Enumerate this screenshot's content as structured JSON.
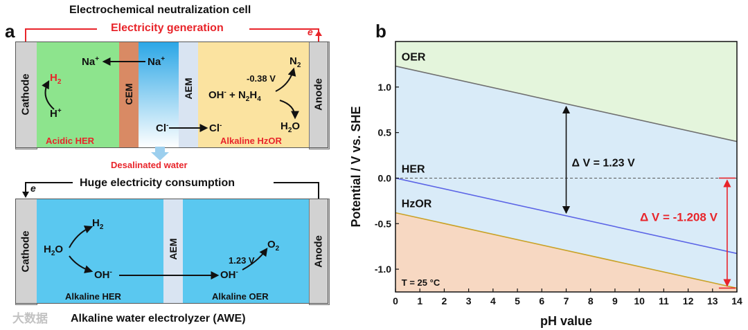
{
  "panel_a": {
    "label": "a",
    "top_cell": {
      "title": "Electrochemical neutralization cell",
      "circuit_label": "Electricity generation",
      "electron": "e",
      "cathode": "Cathode",
      "anode": "Anode",
      "cem": "CEM",
      "aem": "AEM",
      "h2": "H",
      "h2_sub": "2",
      "hplus": "H",
      "hplus_sup": "+",
      "na_left": "Na",
      "na_right": "Na",
      "na_sup": "+",
      "cl_left": "Cl",
      "cl_right": "Cl",
      "minus": "-",
      "oh_hydrazine": "OH",
      "hydrazine_plus": " + N",
      "hydrazine_sub1": "2",
      "hydrazine_h": "H",
      "hydrazine_sub2": "4",
      "voltage": "-0.38 V",
      "n2": "N",
      "n2_sub": "2",
      "h2o": "H",
      "h2o_sub": "2",
      "h2o_o": "O",
      "acidic_her": "Acidic HER",
      "alkaline_hzor": "Alkaline HzOR"
    },
    "desalinated": "Desalinated water",
    "bottom_cell": {
      "circuit_label": "Huge electricity consumption",
      "electron": "e",
      "cathode": "Cathode",
      "anode": "Anode",
      "aem": "AEM",
      "h2": "H",
      "h2_sub": "2",
      "h2o": "H",
      "h2o_sub": "2",
      "h2o_o": "O",
      "oh_left": "OH",
      "oh_right": "OH",
      "minus": "-",
      "voltage": "1.23 V",
      "o2": "O",
      "o2_sub": "2",
      "alkaline_her": "Alkaline HER",
      "alkaline_oer": "Alkaline OER",
      "caption": "Alkaline water electrolyzer (AWE)"
    }
  },
  "panel_b": {
    "label": "b",
    "chart_data": {
      "type": "line",
      "title": "",
      "xlabel": "pH value",
      "ylabel": "Potential / V vs. SHE",
      "xlim": [
        0,
        14
      ],
      "ylim": [
        -1.25,
        1.5
      ],
      "xticks": [
        0,
        1,
        2,
        3,
        4,
        5,
        6,
        7,
        8,
        9,
        10,
        11,
        12,
        13,
        14
      ],
      "yticks": [
        -1.0,
        -0.5,
        0.0,
        0.5,
        1.0
      ],
      "ytick_labels": [
        "-1.0",
        "-0.5",
        "0.0",
        "0.5",
        "1.0"
      ],
      "series": [
        {
          "name": "OER",
          "x": [
            0,
            14
          ],
          "y": [
            1.23,
            0.402
          ],
          "color": "#6f6f6f"
        },
        {
          "name": "HER",
          "x": [
            0,
            14
          ],
          "y": [
            0.0,
            -0.828
          ],
          "color": "#5b64e6"
        },
        {
          "name": "HzOR",
          "x": [
            0,
            14
          ],
          "y": [
            -0.38,
            -1.208
          ],
          "color": "#c9a227"
        }
      ],
      "reference_line": {
        "y": 0.0,
        "style": "dashed"
      },
      "annotations": [
        {
          "text": "Δ V = 1.23 V",
          "at_x": 7
        },
        {
          "text": "Δ V = -1.208 V",
          "at_x": 13.6,
          "color": "#e8242a"
        },
        {
          "text": "T = 25 °C"
        }
      ],
      "regions": [
        {
          "name": "above OER",
          "color": "#e4f5dc"
        },
        {
          "name": "between OER and HzOR",
          "color": "#d9ebf8"
        },
        {
          "name": "below HzOR",
          "color": "#f7d8c2"
        }
      ]
    }
  },
  "watermark": "大数据"
}
